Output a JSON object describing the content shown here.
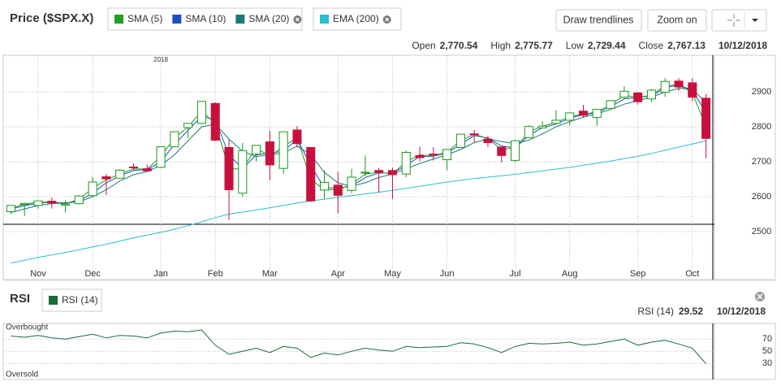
{
  "header": {
    "title": "Price ($SPX.X)",
    "buttons": [
      "Draw trendlines",
      "Zoom on"
    ]
  },
  "quote": {
    "labels": [
      "Open",
      "High",
      "Low",
      "Close"
    ],
    "values": [
      "2,770.54",
      "2,775.77",
      "2,729.44",
      "2,767.13"
    ],
    "date": "10/12/2018"
  },
  "chart_data": [
    {
      "type": "candlestick",
      "annotation": "2018",
      "categories": [
        null,
        null,
        "Nov",
        null,
        null,
        null,
        "Dec",
        null,
        null,
        null,
        null,
        "Jan",
        null,
        null,
        null,
        "Feb",
        null,
        null,
        null,
        "Mar",
        null,
        null,
        null,
        null,
        "Apr",
        null,
        null,
        null,
        "May",
        null,
        null,
        null,
        "Jun",
        null,
        null,
        null,
        null,
        "Jul",
        null,
        null,
        null,
        "Aug",
        null,
        null,
        null,
        null,
        "Sep",
        null,
        null,
        null,
        "Oct",
        null
      ],
      "open": [
        2557,
        2578,
        2575,
        2587,
        2576,
        2580,
        2603,
        2657,
        2653,
        2685,
        2680,
        2684,
        2743,
        2798,
        2810,
        2867,
        2741,
        2610,
        2722,
        2757,
        2681,
        2791,
        2741,
        2619,
        2633,
        2618,
        2670,
        2675,
        2675,
        2665,
        2718,
        2722,
        2706,
        2741,
        2780,
        2765,
        2742,
        2704,
        2769,
        2797,
        2810,
        2819,
        2845,
        2827,
        2853,
        2885,
        2897,
        2880,
        2899,
        2931,
        2926,
        2882
      ],
      "high": [
        2575,
        2582,
        2588,
        2597,
        2590,
        2605,
        2657,
        2665,
        2679,
        2695,
        2692,
        2743,
        2787,
        2810,
        2873,
        2870,
        2763,
        2754,
        2747,
        2789,
        2787,
        2802,
        2742,
        2675,
        2672,
        2680,
        2718,
        2683,
        2682,
        2732,
        2743,
        2742,
        2736,
        2779,
        2791,
        2774,
        2744,
        2763,
        2804,
        2816,
        2848,
        2841,
        2863,
        2852,
        2877,
        2916,
        2900,
        2908,
        2940,
        2940,
        2939,
        2894
      ],
      "low": [
        2550,
        2544,
        2566,
        2566,
        2555,
        2578,
        2600,
        2605,
        2653,
        2676,
        2672,
        2683,
        2741,
        2768,
        2808,
        2759,
        2533,
        2600,
        2701,
        2647,
        2666,
        2741,
        2585,
        2594,
        2553,
        2610,
        2660,
        2612,
        2594,
        2656,
        2702,
        2704,
        2676,
        2740,
        2755,
        2742,
        2698,
        2698,
        2768,
        2796,
        2808,
        2804,
        2826,
        2802,
        2853,
        2881,
        2864,
        2871,
        2886,
        2903,
        2874,
        2710
      ],
      "close": [
        2575,
        2581,
        2588,
        2582,
        2579,
        2602,
        2642,
        2651,
        2676,
        2683,
        2674,
        2743,
        2786,
        2810,
        2873,
        2762,
        2620,
        2732,
        2747,
        2691,
        2786,
        2752,
        2588,
        2641,
        2604,
        2656,
        2670,
        2670,
        2663,
        2727,
        2712,
        2721,
        2735,
        2779,
        2779,
        2755,
        2718,
        2760,
        2801,
        2802,
        2819,
        2840,
        2833,
        2850,
        2875,
        2902,
        2872,
        2905,
        2930,
        2914,
        2885,
        2767
      ],
      "up_color": "#1a9a1a",
      "down_color": "#c8103e",
      "series": [
        {
          "name": "SMA (5)",
          "color": "#22a022",
          "closable": false,
          "values": [
            2568,
            2578,
            2585,
            2584,
            2580,
            2592,
            2625,
            2648,
            2665,
            2680,
            2679,
            2715,
            2768,
            2800,
            2845,
            2810,
            2680,
            2680,
            2740,
            2715,
            2745,
            2768,
            2650,
            2620,
            2620,
            2635,
            2665,
            2670,
            2665,
            2700,
            2720,
            2717,
            2728,
            2760,
            2779,
            2766,
            2735,
            2740,
            2785,
            2802,
            2812,
            2830,
            2836,
            2843,
            2863,
            2890,
            2885,
            2890,
            2918,
            2920,
            2898,
            2800
          ]
        },
        {
          "name": "SMA (10)",
          "color": "#1f4fbf",
          "closable": false,
          "values": [
            2565,
            2574,
            2582,
            2584,
            2582,
            2588,
            2610,
            2640,
            2660,
            2675,
            2678,
            2700,
            2750,
            2790,
            2830,
            2820,
            2720,
            2680,
            2720,
            2725,
            2730,
            2765,
            2690,
            2625,
            2625,
            2630,
            2655,
            2668,
            2667,
            2690,
            2715,
            2716,
            2725,
            2750,
            2775,
            2768,
            2745,
            2740,
            2775,
            2798,
            2808,
            2825,
            2835,
            2840,
            2858,
            2880,
            2885,
            2888,
            2912,
            2920,
            2905,
            2840
          ]
        },
        {
          "name": "SMA (20)",
          "color": "#1a7a7a",
          "closable": true,
          "values": [
            2555,
            2565,
            2575,
            2580,
            2582,
            2585,
            2600,
            2620,
            2645,
            2663,
            2672,
            2690,
            2720,
            2760,
            2800,
            2808,
            2765,
            2730,
            2715,
            2720,
            2725,
            2745,
            2720,
            2670,
            2640,
            2630,
            2640,
            2655,
            2665,
            2680,
            2695,
            2708,
            2720,
            2735,
            2755,
            2765,
            2758,
            2752,
            2762,
            2780,
            2800,
            2815,
            2828,
            2837,
            2850,
            2865,
            2875,
            2885,
            2900,
            2910,
            2908,
            2870
          ]
        },
        {
          "name": "EMA (200)",
          "color": "#26bfcf",
          "closable": true,
          "values": [
            2410,
            2418,
            2426,
            2433,
            2440,
            2448,
            2456,
            2464,
            2473,
            2482,
            2490,
            2498,
            2507,
            2517,
            2528,
            2540,
            2550,
            2556,
            2562,
            2568,
            2575,
            2582,
            2588,
            2593,
            2598,
            2603,
            2608,
            2613,
            2618,
            2624,
            2630,
            2636,
            2642,
            2647,
            2652,
            2656,
            2660,
            2664,
            2669,
            2674,
            2679,
            2684,
            2690,
            2696,
            2702,
            2709,
            2716,
            2724,
            2733,
            2742,
            2751,
            2760
          ]
        }
      ],
      "ylim": [
        2400,
        3005
      ],
      "yticks": [
        2500,
        2600,
        2700,
        2800,
        2900
      ],
      "grid": true
    },
    {
      "type": "line",
      "title": "RSI",
      "annotations": [
        "Overbought",
        "Oversold"
      ],
      "series": [
        {
          "name": "RSI (14)",
          "color": "#1b6b3a",
          "values": [
            75,
            73,
            76,
            72,
            70,
            74,
            78,
            72,
            76,
            75,
            72,
            80,
            83,
            82,
            85,
            60,
            45,
            50,
            55,
            48,
            58,
            55,
            40,
            47,
            44,
            50,
            55,
            52,
            50,
            58,
            56,
            57,
            58,
            64,
            62,
            56,
            48,
            58,
            63,
            62,
            63,
            65,
            60,
            62,
            66,
            70,
            60,
            65,
            68,
            62,
            55,
            29.52
          ]
        }
      ],
      "ylim": [
        5,
        93
      ],
      "yticks": [
        30,
        50,
        70
      ],
      "grid": true
    }
  ]
}
